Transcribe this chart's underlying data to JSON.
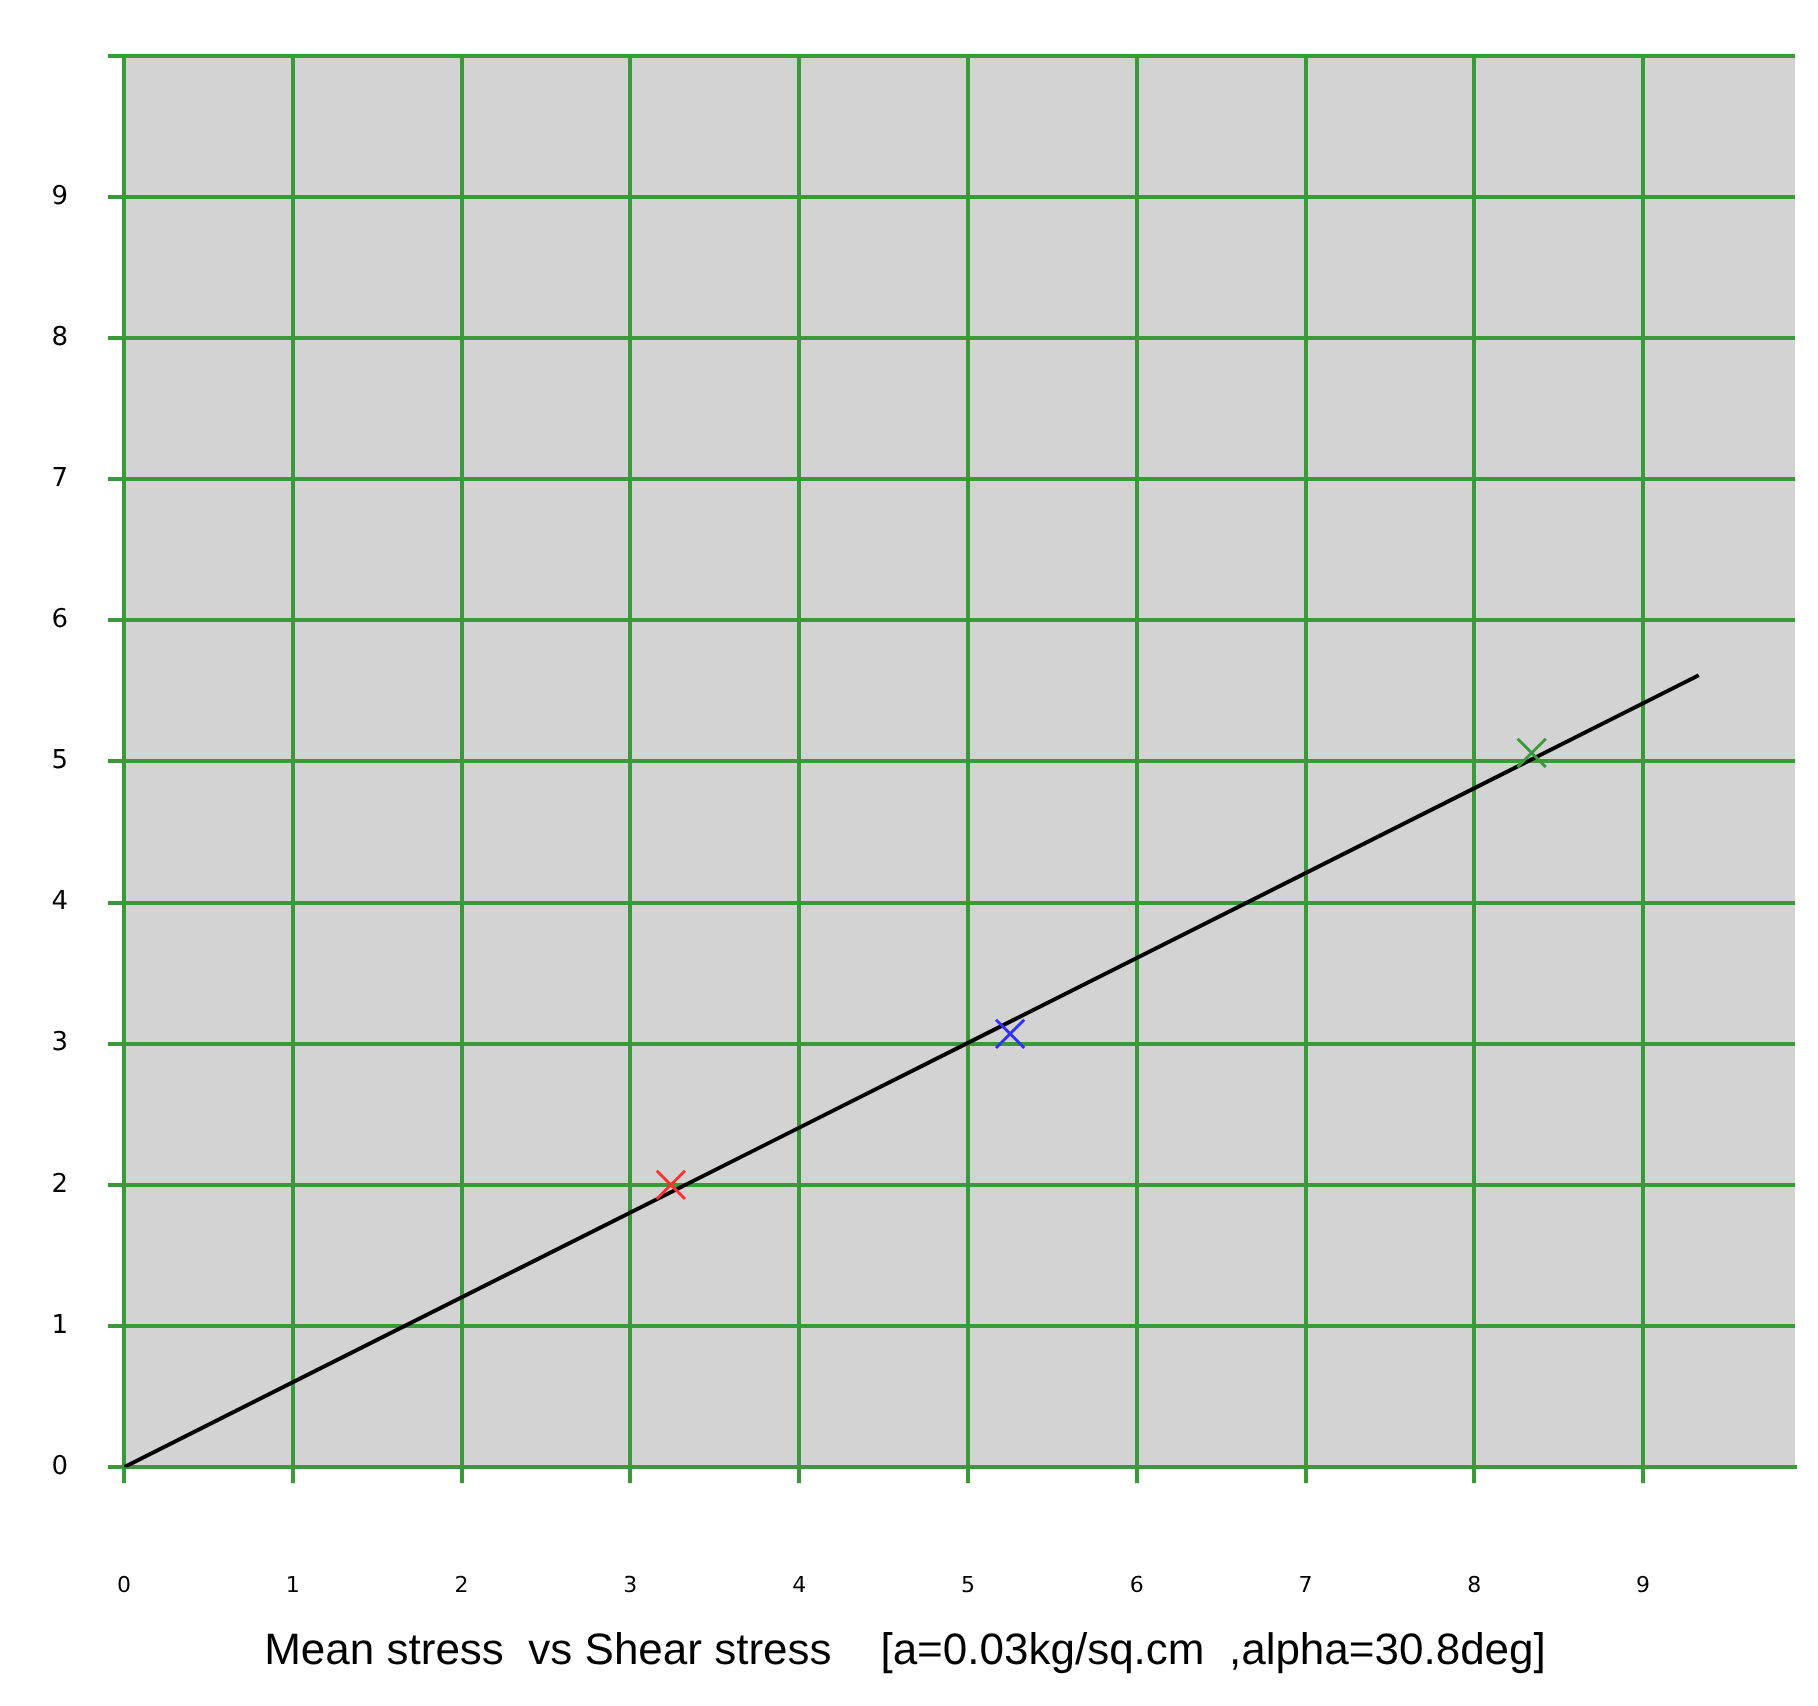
{
  "chart_data": {
    "type": "scatter",
    "title": "Mean stress  vs Shear stress    [a=0.03kg/sq.cm  ,alpha=30.8deg]",
    "xlim": [
      0,
      9.9
    ],
    "xticks": [
      0,
      1,
      2,
      3,
      4,
      5,
      6,
      7,
      8,
      9
    ],
    "ylim": [
      0,
      10
    ],
    "yticks": [
      0,
      1,
      2,
      3,
      4,
      5,
      6,
      7,
      8,
      9,
      {
        "value": 10,
        "label": null
      }
    ],
    "grid": true,
    "line_style": "solid",
    "series": [
      {
        "type": "scatter",
        "x": [
          3.24,
          5.25,
          8.34
        ],
        "values": [
          2.0,
          3.07,
          5.06
        ],
        "marker": "cross",
        "colors": [
          "#ff3030",
          "#3030ff",
          "#3a9a3a"
        ]
      },
      {
        "type": "line",
        "x": [
          0,
          9.33
        ],
        "values": [
          0,
          5.61
        ],
        "marker": "none",
        "color": "#000000"
      }
    ]
  }
}
